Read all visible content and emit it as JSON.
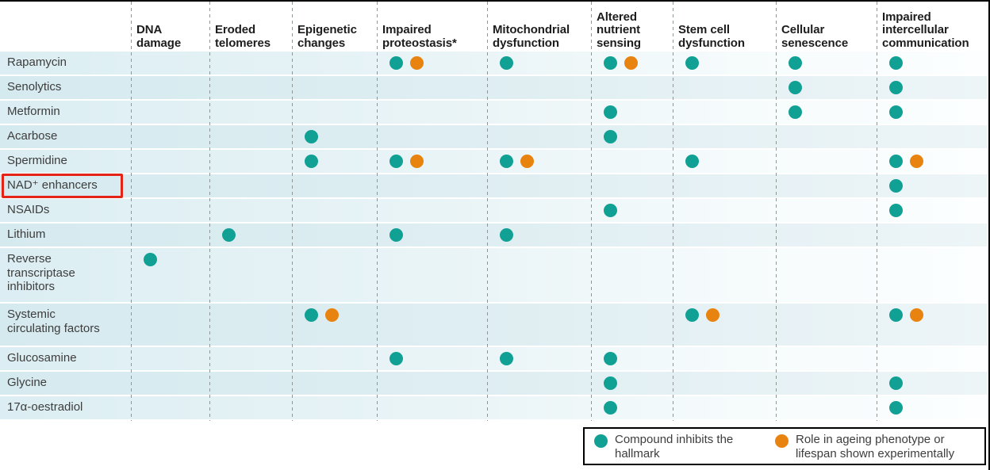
{
  "colors": {
    "teal": "#10a094",
    "orange": "#e8830f",
    "highlight_red": "#e32417"
  },
  "chart_data": {
    "type": "table",
    "title": "",
    "columns": [
      "DNA\ndamage",
      "Eroded\ntelomeres",
      "Epigenetic\nchanges",
      "Impaired\nproteostasis*",
      "Mitochondrial\ndysfunction",
      "Altered\nnutrient\nsensing",
      "Stem cell\ndysfunction",
      "Cellular\nsenescence",
      "Impaired\nintercellular\ncommunication"
    ],
    "value_key": {
      "T": "teal dot: compound inhibits the hallmark",
      "TO": "teal dot + orange dot: inhibits hallmark and role shown experimentally"
    },
    "rows": [
      {
        "label": "Rapamycin",
        "highlighted": false,
        "values": [
          "",
          "",
          "",
          "TO",
          "T",
          "TO",
          "T",
          "T",
          "T"
        ]
      },
      {
        "label": "Senolytics",
        "highlighted": false,
        "values": [
          "",
          "",
          "",
          "",
          "",
          "",
          "",
          "T",
          "T"
        ]
      },
      {
        "label": "Metformin",
        "highlighted": false,
        "values": [
          "",
          "",
          "",
          "",
          "",
          "T",
          "",
          "T",
          "T"
        ]
      },
      {
        "label": "Acarbose",
        "highlighted": false,
        "values": [
          "",
          "",
          "T",
          "",
          "",
          "T",
          "",
          "",
          ""
        ]
      },
      {
        "label": "Spermidine",
        "highlighted": false,
        "values": [
          "",
          "",
          "T",
          "TO",
          "TO",
          "",
          "T",
          "",
          "TO"
        ]
      },
      {
        "label": "NAD⁺ enhancers",
        "highlighted": true,
        "values": [
          "",
          "",
          "",
          "",
          "",
          "",
          "",
          "",
          "T"
        ]
      },
      {
        "label": "NSAIDs",
        "highlighted": false,
        "values": [
          "",
          "",
          "",
          "",
          "",
          "T",
          "",
          "",
          "T"
        ]
      },
      {
        "label": "Lithium",
        "highlighted": false,
        "values": [
          "",
          "T",
          "",
          "T",
          "T",
          "",
          "",
          "",
          ""
        ]
      },
      {
        "label": "Reverse\ntranscriptase\ninhibitors",
        "highlighted": false,
        "values": [
          "T",
          "",
          "",
          "",
          "",
          "",
          "",
          "",
          ""
        ]
      },
      {
        "label": "Systemic\ncirculating factors",
        "highlighted": false,
        "values": [
          "",
          "",
          "TO",
          "",
          "",
          "",
          "TO",
          "",
          "TO"
        ]
      },
      {
        "label": "Glucosamine",
        "highlighted": false,
        "values": [
          "",
          "",
          "",
          "T",
          "T",
          "T",
          "",
          "",
          ""
        ]
      },
      {
        "label": "Glycine",
        "highlighted": false,
        "values": [
          "",
          "",
          "",
          "",
          "",
          "T",
          "",
          "",
          "T"
        ]
      },
      {
        "label": "17α-oestradiol",
        "highlighted": false,
        "values": [
          "",
          "",
          "",
          "",
          "",
          "T",
          "",
          "",
          "T"
        ]
      }
    ],
    "legend": [
      {
        "color": "#10a094",
        "label": "Compound inhibits the hallmark"
      },
      {
        "color": "#e8830f",
        "label": "Role in ageing phenotype or lifespan shown experimentally"
      }
    ]
  }
}
